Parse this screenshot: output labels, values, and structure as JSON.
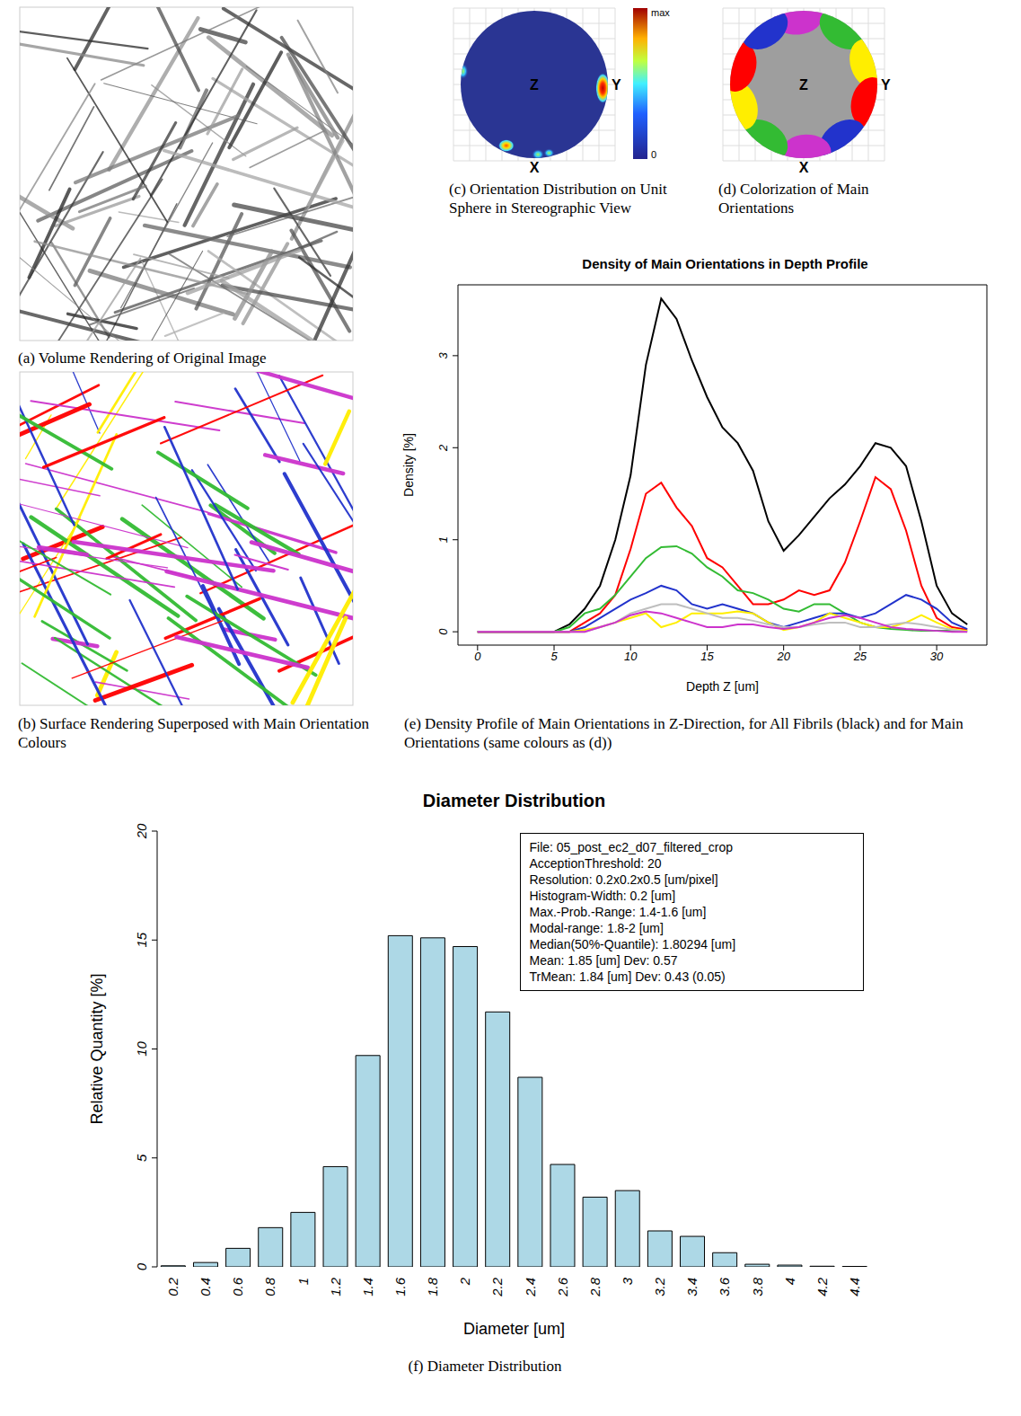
{
  "panels": {
    "a": {
      "caption": "(a) Volume Rendering of Original Image"
    },
    "b": {
      "caption": "(b) Surface Rendering Superposed with Main Orientation Colours"
    },
    "c": {
      "caption": "(c) Orientation Distribution on Unit Sphere in Stereographic View",
      "axis_labels": [
        "Z",
        "Y",
        "X"
      ],
      "colorbar": {
        "labels": [
          "max",
          0
        ]
      }
    },
    "d": {
      "caption": "(d) Colorization of Main Orientations",
      "axis_labels": [
        "Z",
        "Y",
        "X"
      ]
    }
  },
  "chart_data": [
    {
      "type": "line",
      "title": "Density of Main Orientations in Depth Profile",
      "x_label": "Depth Z [um]",
      "y_label": "Density [%]",
      "caption": "(e) Density Profile of Main Orientations in Z-Direction, for All Fibrils (black) and for Main Orientations (same colours as (d))",
      "x": [
        0,
        1,
        2,
        3,
        4,
        5,
        6,
        7,
        8,
        9,
        10,
        11,
        12,
        13,
        14,
        15,
        16,
        17,
        18,
        19,
        20,
        21,
        22,
        23,
        24,
        25,
        26,
        27,
        28,
        29,
        30,
        31,
        32
      ],
      "xlim": [
        -1.28,
        33.28
      ],
      "xticks": [
        0,
        5,
        10,
        15,
        20,
        25,
        30
      ],
      "ylim": [
        -0.145,
        3.77
      ],
      "yticks": [
        0,
        1,
        2,
        3
      ],
      "series": [
        {
          "color": "#000000",
          "values": [
            0,
            0,
            0,
            0,
            0,
            0,
            0.08,
            0.25,
            0.5,
            1.0,
            1.7,
            2.9,
            3.62,
            3.4,
            2.95,
            2.55,
            2.22,
            2.05,
            1.75,
            1.2,
            0.88,
            1.05,
            1.25,
            1.45,
            1.6,
            1.8,
            2.05,
            2.0,
            1.8,
            1.2,
            0.5,
            0.2,
            0.08
          ]
        },
        {
          "color": "#ff0000",
          "values": [
            0,
            0,
            0,
            0,
            0,
            0,
            0,
            0.1,
            0.2,
            0.4,
            0.9,
            1.5,
            1.62,
            1.35,
            1.15,
            0.8,
            0.7,
            0.5,
            0.3,
            0.3,
            0.35,
            0.45,
            0.4,
            0.45,
            0.75,
            1.2,
            1.68,
            1.55,
            1.1,
            0.5,
            0.15,
            0.05,
            0.02
          ]
        },
        {
          "color": "#33bb33",
          "values": [
            0,
            0,
            0,
            0,
            0,
            0,
            0.05,
            0.2,
            0.25,
            0.4,
            0.6,
            0.8,
            0.92,
            0.93,
            0.85,
            0.7,
            0.6,
            0.45,
            0.42,
            0.35,
            0.25,
            0.22,
            0.3,
            0.3,
            0.2,
            0.1,
            0.05,
            0.03,
            0.02,
            0.01,
            0.01,
            0.01,
            0.01
          ]
        },
        {
          "color": "#2233cc",
          "values": [
            0,
            0,
            0,
            0,
            0,
            0,
            0,
            0.05,
            0.15,
            0.25,
            0.35,
            0.42,
            0.5,
            0.45,
            0.3,
            0.25,
            0.3,
            0.25,
            0.2,
            0.1,
            0.05,
            0.1,
            0.15,
            0.2,
            0.2,
            0.15,
            0.2,
            0.3,
            0.4,
            0.35,
            0.25,
            0.1,
            0.03
          ]
        },
        {
          "color": "#ffee00",
          "values": [
            0,
            0,
            0,
            0,
            0,
            0,
            0,
            0.02,
            0.05,
            0.1,
            0.15,
            0.2,
            0.05,
            0.1,
            0.2,
            0.2,
            0.2,
            0.22,
            0.2,
            0.1,
            0.02,
            0.05,
            0.1,
            0.2,
            0.15,
            0.1,
            0.05,
            0.05,
            0.1,
            0.18,
            0.1,
            0.03,
            0.01
          ]
        },
        {
          "color": "#bebebe",
          "values": [
            0,
            0,
            0,
            0,
            0,
            0,
            0,
            0,
            0.05,
            0.1,
            0.2,
            0.25,
            0.3,
            0.3,
            0.25,
            0.2,
            0.15,
            0.15,
            0.12,
            0.08,
            0.05,
            0.05,
            0.08,
            0.1,
            0.1,
            0.05,
            0.05,
            0.08,
            0.1,
            0.08,
            0.05,
            0.02,
            0
          ]
        },
        {
          "color": "#cc33cc",
          "values": [
            0,
            0,
            0,
            0,
            0,
            0,
            0,
            0,
            0.05,
            0.1,
            0.18,
            0.22,
            0.2,
            0.15,
            0.1,
            0.05,
            0.05,
            0.08,
            0.08,
            0.05,
            0.03,
            0.05,
            0.1,
            0.15,
            0.18,
            0.15,
            0.1,
            0.05,
            0.03,
            0.02,
            0.01,
            0,
            0
          ]
        }
      ]
    },
    {
      "type": "bar",
      "title": "Diameter Distribution",
      "x_label": "Diameter [um]",
      "y_label": "Relative Quantity [%]",
      "caption": "(f) Diameter Distribution",
      "categories": [
        "0.2",
        "0.4",
        "0.6",
        "0.8",
        "1",
        "1.2",
        "1.4",
        "1.6",
        "1.8",
        "2",
        "2.2",
        "2.4",
        "2.6",
        "2.8",
        "3",
        "3.2",
        "3.4",
        "3.6",
        "3.8",
        "4",
        "4.2",
        "4.4"
      ],
      "values": [
        0.05,
        0.2,
        0.85,
        1.8,
        2.5,
        4.6,
        9.7,
        15.2,
        15.1,
        14.7,
        11.7,
        8.7,
        4.7,
        3.2,
        3.5,
        1.65,
        1.4,
        0.65,
        0.12,
        0.08,
        0.03,
        0.02
      ],
      "color": "#add8e6",
      "ylim": [
        0,
        20
      ],
      "yticks": [
        0,
        5,
        10,
        15,
        20
      ],
      "annotation": [
        "File: 05_post_ec2_d07_filtered_crop",
        "AcceptionThreshold: 20",
        "Resolution: 0.2x0.2x0.5 [um/pixel]",
        "Histogram-Width: 0.2 [um]",
        "Max.-Prob.-Range: 1.4-1.6 [um]",
        "Modal-range: 1.8-2 [um]",
        "Median(50%-Quantile): 1.80294 [um]",
        "Mean: 1.85 [um] Dev: 0.57",
        "TrMean: 1.84 [um] Dev: 0.43 (0.05)"
      ]
    }
  ]
}
